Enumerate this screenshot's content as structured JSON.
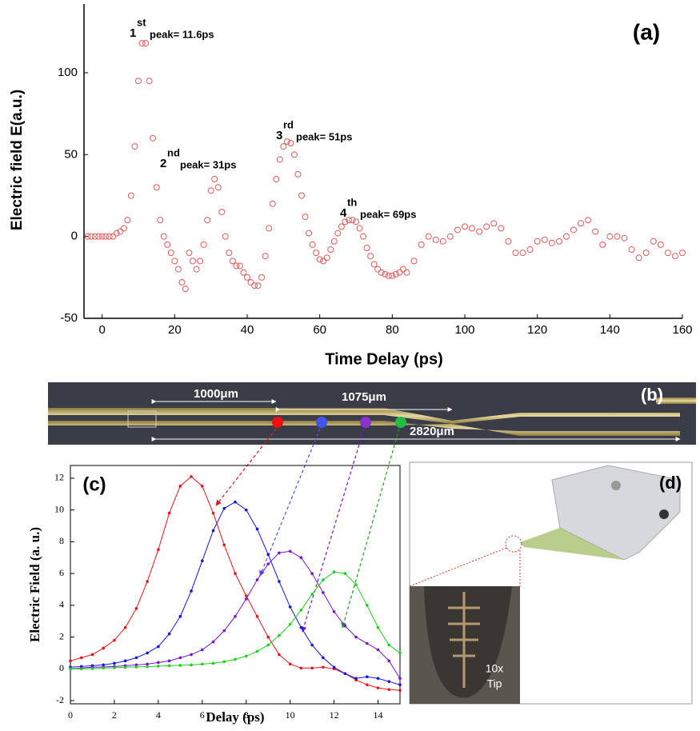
{
  "chart_data": [
    {
      "type": "scatter",
      "panel_label": "(a)",
      "x_label": "Time Delay (ps)",
      "y_label": "Electric field E(a.u.)",
      "color": "#e05a5a",
      "xlim": [
        -5,
        160
      ],
      "ylim": [
        -50,
        142
      ],
      "xticks": [
        0,
        20,
        40,
        60,
        80,
        100,
        120,
        140,
        160
      ],
      "yticks": [
        -50,
        0,
        50,
        100
      ],
      "annotations": [
        {
          "ordinal": "1",
          "suffix": "st",
          "text": "peak= 11.6ps"
        },
        {
          "ordinal": "2",
          "suffix": "nd",
          "text": "peak= 31ps"
        },
        {
          "ordinal": "3",
          "suffix": "rd",
          "text": "peak= 51ps"
        },
        {
          "ordinal": "4",
          "suffix": "th",
          "text": "peak= 69ps"
        }
      ],
      "x": [
        -4,
        -3,
        -2,
        -1,
        0,
        1,
        2,
        3,
        4,
        5,
        6,
        7,
        8,
        9,
        10,
        11,
        12,
        13,
        14,
        15,
        16,
        17,
        18,
        19,
        20,
        21,
        22,
        23,
        24,
        25,
        26,
        27,
        28,
        29,
        30,
        31,
        32,
        33,
        34,
        35,
        36,
        37,
        38,
        39,
        40,
        41,
        42,
        43,
        44,
        45,
        46,
        47,
        48,
        49,
        50,
        51,
        52,
        53,
        54,
        55,
        56,
        57,
        58,
        59,
        60,
        61,
        62,
        63,
        64,
        65,
        66,
        67,
        68,
        69,
        70,
        71,
        72,
        73,
        74,
        75,
        76,
        77,
        78,
        79,
        80,
        81,
        82,
        83,
        84,
        86,
        88,
        90,
        92,
        94,
        96,
        98,
        100,
        102,
        104,
        106,
        108,
        110,
        112,
        114,
        116,
        118,
        120,
        122,
        124,
        126,
        128,
        130,
        132,
        134,
        136,
        138,
        140,
        142,
        144,
        146,
        148,
        150,
        152,
        154,
        156,
        158,
        160
      ],
      "values": [
        0,
        0,
        0,
        0,
        0,
        0,
        0,
        0,
        2,
        3,
        5,
        10,
        25,
        55,
        95,
        118,
        118,
        95,
        60,
        30,
        10,
        0,
        -5,
        -10,
        -15,
        -20,
        -28,
        -32,
        -10,
        -15,
        -20,
        -15,
        -5,
        10,
        28,
        35,
        30,
        15,
        0,
        -10,
        -15,
        -18,
        -18,
        -22,
        -25,
        -28,
        -30,
        -30,
        -25,
        -12,
        5,
        20,
        35,
        47,
        55,
        58,
        57,
        50,
        38,
        25,
        12,
        2,
        -5,
        -10,
        -14,
        -15,
        -13,
        -8,
        -3,
        2,
        6,
        9,
        10,
        10,
        9,
        5,
        0,
        -7,
        -12,
        -17,
        -20,
        -22,
        -23,
        -24,
        -24,
        -23,
        -22,
        -20,
        -22,
        -15,
        -5,
        0,
        -2,
        -3,
        0,
        4,
        6,
        5,
        3,
        6,
        8,
        5,
        -3,
        -10,
        -10,
        -8,
        -3,
        -2,
        -4,
        -3,
        0,
        4,
        8,
        10,
        3,
        -5,
        0,
        0,
        -1,
        -8,
        -13,
        -10,
        -3,
        -5,
        -10,
        -12,
        -10
      ]
    },
    {
      "type": "line",
      "panel_label": "(c)",
      "x_label": "Delay (ps)",
      "y_label": "Electric Field (a. u.)",
      "xlim": [
        0,
        15
      ],
      "ylim": [
        -2.2,
        12.8
      ],
      "xticks": [
        0,
        2,
        4,
        6,
        8,
        10,
        12,
        14
      ],
      "yticks": [
        -2,
        0,
        2,
        4,
        6,
        8,
        10,
        12
      ],
      "x": [
        0,
        0.5,
        1,
        1.5,
        2,
        2.5,
        3,
        3.5,
        4,
        4.5,
        5,
        5.5,
        6,
        6.5,
        7,
        7.5,
        8,
        8.5,
        9,
        9.5,
        10,
        10.5,
        11,
        11.5,
        12,
        12.5,
        13,
        13.5,
        14,
        14.5,
        15
      ],
      "series": [
        {
          "color": "#e8141a",
          "values": [
            0.5,
            0.7,
            0.9,
            1.3,
            1.8,
            2.6,
            3.8,
            5.5,
            7.5,
            9.8,
            11.5,
            12.1,
            11.5,
            9.8,
            7.8,
            6,
            4.6,
            3.3,
            2,
            0.9,
            0.3,
            0.05,
            0.05,
            0.1,
            0,
            -0.3,
            -0.7,
            -1,
            -1.2,
            -1.3,
            -1.35
          ]
        },
        {
          "color": "#1414e0",
          "values": [
            0.1,
            0.15,
            0.2,
            0.25,
            0.35,
            0.5,
            0.7,
            1,
            1.4,
            2.2,
            3.3,
            4.9,
            6.8,
            8.7,
            10.1,
            10.5,
            10,
            8.8,
            7.2,
            5.5,
            3.9,
            2.6,
            1.5,
            0.7,
            0.1,
            -0.3,
            -0.6,
            -0.5,
            -0.6,
            -0.8,
            -1
          ]
        },
        {
          "color": "#7a14d0",
          "values": [
            0,
            0.05,
            0.1,
            0.12,
            0.15,
            0.2,
            0.25,
            0.3,
            0.4,
            0.5,
            0.7,
            0.9,
            1.2,
            1.7,
            2.4,
            3.3,
            4.4,
            5.6,
            6.6,
            7.3,
            7.4,
            7,
            6,
            4.8,
            3.6,
            2.7,
            2,
            1.6,
            1.2,
            0.5,
            -0.6
          ]
        },
        {
          "color": "#1ed01e",
          "values": [
            0,
            0,
            0.02,
            0.05,
            0.07,
            0.1,
            0.12,
            0.14,
            0.17,
            0.2,
            0.22,
            0.25,
            0.3,
            0.35,
            0.45,
            0.6,
            0.8,
            1.1,
            1.5,
            2.1,
            2.8,
            3.7,
            4.7,
            5.6,
            6.1,
            6,
            5.3,
            4,
            2.6,
            1.5,
            1
          ]
        }
      ]
    }
  ],
  "panel_b": {
    "label": "(b)",
    "dimensions": [
      "1000μm",
      "1075μm",
      "2820μm"
    ]
  },
  "panel_d": {
    "label": "(d)",
    "inset_text": [
      "10x",
      "Tip"
    ]
  }
}
